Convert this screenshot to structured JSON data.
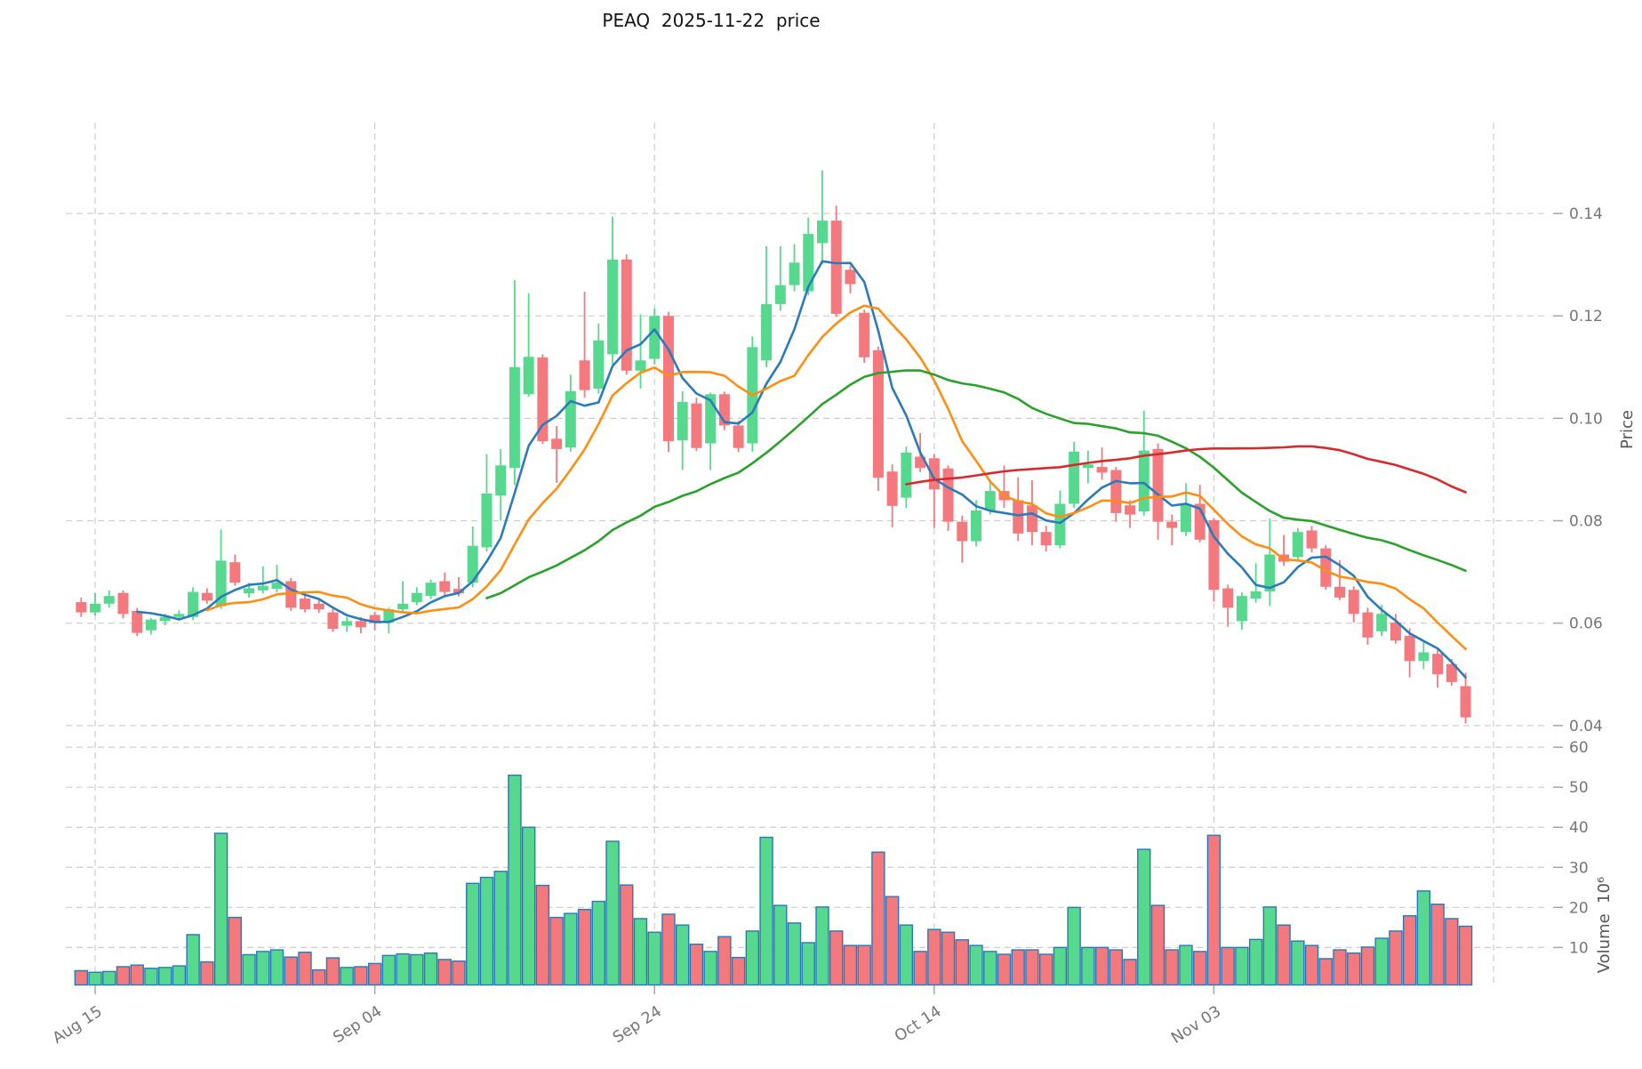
{
  "title": "PEAQ  2025-11-22  price",
  "chart_data": {
    "type": "candlestick",
    "subpanels": [
      "price",
      "volume"
    ],
    "price_axis": {
      "label": "Price",
      "ticks": [
        "0.14",
        "0.12",
        "0.10",
        "0.08",
        "0.06",
        "0.04"
      ],
      "tick_values": [
        0.14,
        0.12,
        0.1,
        0.08,
        0.06,
        0.04
      ],
      "range": [
        0.038,
        0.158
      ]
    },
    "volume_axis": {
      "label": "Volume  10⁶",
      "ticks": [
        "60",
        "50",
        "40",
        "30",
        "20",
        "10"
      ],
      "tick_values": [
        60,
        50,
        40,
        30,
        20,
        10
      ],
      "unit_scale": 1000000,
      "range": [
        0,
        66
      ]
    },
    "x_ticks": [
      {
        "label": "Aug 15",
        "day": 1
      },
      {
        "label": "Sep 04",
        "day": 21
      },
      {
        "label": "Sep 24",
        "day": 41
      },
      {
        "label": "Oct 14",
        "day": 61
      },
      {
        "label": "Nov 03",
        "day": 81
      }
    ],
    "x_gridline_days": [
      1,
      21,
      41,
      61,
      81,
      101
    ],
    "grid": "dashed",
    "moving_averages": [
      {
        "name": "ma-5",
        "window": 5,
        "color": "#2b7bba"
      },
      {
        "name": "ma-10",
        "window": 10,
        "color": "#ff8e13"
      },
      {
        "name": "ma-30",
        "window": 30,
        "color": "#2ca02c"
      },
      {
        "name": "ma-60",
        "window": 60,
        "color": "#d62b2e"
      }
    ],
    "candles": [
      {
        "d": "Aug 14",
        "o": 0.0641,
        "h": 0.065,
        "l": 0.0612,
        "c": 0.0621,
        "v": 4.2
      },
      {
        "d": "Aug 15",
        "o": 0.0621,
        "h": 0.0659,
        "l": 0.0615,
        "c": 0.0638,
        "v": 3.8
      },
      {
        "d": "Aug 16",
        "o": 0.0638,
        "h": 0.0664,
        "l": 0.063,
        "c": 0.0653,
        "v": 4.0
      },
      {
        "d": "Aug 17",
        "o": 0.0659,
        "h": 0.0664,
        "l": 0.0609,
        "c": 0.0618,
        "v": 5.2
      },
      {
        "d": "Aug 18",
        "o": 0.0624,
        "h": 0.063,
        "l": 0.0575,
        "c": 0.0581,
        "v": 5.6
      },
      {
        "d": "Aug 19",
        "o": 0.0586,
        "h": 0.061,
        "l": 0.0578,
        "c": 0.0607,
        "v": 4.8
      },
      {
        "d": "Aug 20",
        "o": 0.0604,
        "h": 0.0618,
        "l": 0.0596,
        "c": 0.0612,
        "v": 5.0
      },
      {
        "d": "Aug 21",
        "o": 0.0612,
        "h": 0.0625,
        "l": 0.0605,
        "c": 0.0618,
        "v": 5.4
      },
      {
        "d": "Aug 22",
        "o": 0.0612,
        "h": 0.067,
        "l": 0.0606,
        "c": 0.0661,
        "v": 13.2
      },
      {
        "d": "Aug 23",
        "o": 0.0659,
        "h": 0.0668,
        "l": 0.0638,
        "c": 0.0644,
        "v": 6.4
      },
      {
        "d": "Aug 24",
        "o": 0.0633,
        "h": 0.0783,
        "l": 0.0628,
        "c": 0.0722,
        "v": 38.5
      },
      {
        "d": "Aug 25",
        "o": 0.0719,
        "h": 0.0734,
        "l": 0.0673,
        "c": 0.0679,
        "v": 17.5
      },
      {
        "d": "Aug 26",
        "o": 0.0658,
        "h": 0.0679,
        "l": 0.065,
        "c": 0.0668,
        "v": 8.2
      },
      {
        "d": "Aug 27",
        "o": 0.0664,
        "h": 0.0711,
        "l": 0.0658,
        "c": 0.0673,
        "v": 9.0
      },
      {
        "d": "Aug 28",
        "o": 0.0667,
        "h": 0.0714,
        "l": 0.066,
        "c": 0.0679,
        "v": 9.4
      },
      {
        "d": "Aug 29",
        "o": 0.0682,
        "h": 0.0688,
        "l": 0.0624,
        "c": 0.063,
        "v": 7.6
      },
      {
        "d": "Aug 30",
        "o": 0.0648,
        "h": 0.0655,
        "l": 0.0621,
        "c": 0.0627,
        "v": 8.8
      },
      {
        "d": "Aug 31",
        "o": 0.0638,
        "h": 0.0645,
        "l": 0.062,
        "c": 0.0627,
        "v": 4.4
      },
      {
        "d": "Sep 01",
        "o": 0.0621,
        "h": 0.0628,
        "l": 0.0583,
        "c": 0.0589,
        "v": 7.4
      },
      {
        "d": "Sep 02",
        "o": 0.0595,
        "h": 0.0612,
        "l": 0.0583,
        "c": 0.0604,
        "v": 5.0
      },
      {
        "d": "Sep 03",
        "o": 0.0604,
        "h": 0.0612,
        "l": 0.058,
        "c": 0.0592,
        "v": 5.2
      },
      {
        "d": "Sep 04",
        "o": 0.0616,
        "h": 0.0622,
        "l": 0.0586,
        "c": 0.06,
        "v": 6.0
      },
      {
        "d": "Sep 05",
        "o": 0.0601,
        "h": 0.063,
        "l": 0.058,
        "c": 0.0627,
        "v": 8.0
      },
      {
        "d": "Sep 06",
        "o": 0.0627,
        "h": 0.0682,
        "l": 0.0622,
        "c": 0.0638,
        "v": 8.4
      },
      {
        "d": "Sep 07",
        "o": 0.0641,
        "h": 0.067,
        "l": 0.0635,
        "c": 0.0659,
        "v": 8.2
      },
      {
        "d": "Sep 08",
        "o": 0.0653,
        "h": 0.0685,
        "l": 0.0647,
        "c": 0.0679,
        "v": 8.6
      },
      {
        "d": "Sep 09",
        "o": 0.0682,
        "h": 0.0699,
        "l": 0.0655,
        "c": 0.0661,
        "v": 7.0
      },
      {
        "d": "Sep 10",
        "o": 0.0667,
        "h": 0.069,
        "l": 0.0652,
        "c": 0.0658,
        "v": 6.6
      },
      {
        "d": "Sep 11",
        "o": 0.0679,
        "h": 0.0789,
        "l": 0.067,
        "c": 0.0751,
        "v": 26.0
      },
      {
        "d": "Sep 12",
        "o": 0.0748,
        "h": 0.093,
        "l": 0.074,
        "c": 0.0853,
        "v": 27.5
      },
      {
        "d": "Sep 13",
        "o": 0.0849,
        "h": 0.094,
        "l": 0.08,
        "c": 0.0908,
        "v": 29.0
      },
      {
        "d": "Sep 14",
        "o": 0.0903,
        "h": 0.127,
        "l": 0.087,
        "c": 0.11,
        "v": 53.0
      },
      {
        "d": "Sep 15",
        "o": 0.1047,
        "h": 0.1244,
        "l": 0.1042,
        "c": 0.112,
        "v": 40.0
      },
      {
        "d": "Sep 16",
        "o": 0.1119,
        "h": 0.1125,
        "l": 0.095,
        "c": 0.0955,
        "v": 25.5
      },
      {
        "d": "Sep 17",
        "o": 0.096,
        "h": 0.0985,
        "l": 0.0874,
        "c": 0.094,
        "v": 17.5
      },
      {
        "d": "Sep 18",
        "o": 0.0943,
        "h": 0.1085,
        "l": 0.0935,
        "c": 0.1053,
        "v": 18.5
      },
      {
        "d": "Sep 19",
        "o": 0.1113,
        "h": 0.1247,
        "l": 0.104,
        "c": 0.1055,
        "v": 19.5
      },
      {
        "d": "Sep 20",
        "o": 0.1058,
        "h": 0.1185,
        "l": 0.1048,
        "c": 0.1152,
        "v": 21.5
      },
      {
        "d": "Sep 21",
        "o": 0.1125,
        "h": 0.1394,
        "l": 0.1105,
        "c": 0.131,
        "v": 36.5
      },
      {
        "d": "Sep 22",
        "o": 0.131,
        "h": 0.132,
        "l": 0.1085,
        "c": 0.1093,
        "v": 25.6
      },
      {
        "d": "Sep 23",
        "o": 0.1093,
        "h": 0.1203,
        "l": 0.1058,
        "c": 0.1113,
        "v": 17.2
      },
      {
        "d": "Sep 24",
        "o": 0.1116,
        "h": 0.1215,
        "l": 0.1105,
        "c": 0.12,
        "v": 13.8
      },
      {
        "d": "Sep 25",
        "o": 0.12,
        "h": 0.1208,
        "l": 0.0934,
        "c": 0.0955,
        "v": 18.3
      },
      {
        "d": "Sep 26",
        "o": 0.0957,
        "h": 0.1053,
        "l": 0.0899,
        "c": 0.1032,
        "v": 15.6
      },
      {
        "d": "Sep 27",
        "o": 0.1029,
        "h": 0.104,
        "l": 0.0936,
        "c": 0.0942,
        "v": 10.8
      },
      {
        "d": "Sep 28",
        "o": 0.0951,
        "h": 0.105,
        "l": 0.0899,
        "c": 0.1047,
        "v": 9.0
      },
      {
        "d": "Sep 29",
        "o": 0.1047,
        "h": 0.1052,
        "l": 0.0977,
        "c": 0.0986,
        "v": 12.7
      },
      {
        "d": "Sep 30",
        "o": 0.0986,
        "h": 0.0995,
        "l": 0.0934,
        "c": 0.0942,
        "v": 7.5
      },
      {
        "d": "Oct 01",
        "o": 0.0951,
        "h": 0.116,
        "l": 0.0935,
        "c": 0.1139,
        "v": 14.1
      },
      {
        "d": "Oct 02",
        "o": 0.1113,
        "h": 0.1336,
        "l": 0.11,
        "c": 0.1223,
        "v": 37.5
      },
      {
        "d": "Oct 03",
        "o": 0.1223,
        "h": 0.1336,
        "l": 0.121,
        "c": 0.126,
        "v": 20.5
      },
      {
        "d": "Oct 04",
        "o": 0.126,
        "h": 0.134,
        "l": 0.1248,
        "c": 0.1304,
        "v": 16.1
      },
      {
        "d": "Oct 05",
        "o": 0.1248,
        "h": 0.1392,
        "l": 0.124,
        "c": 0.136,
        "v": 11.2
      },
      {
        "d": "Oct 06",
        "o": 0.1342,
        "h": 0.1484,
        "l": 0.1301,
        "c": 0.1386,
        "v": 20.1
      },
      {
        "d": "Oct 07",
        "o": 0.1386,
        "h": 0.1415,
        "l": 0.1198,
        "c": 0.1204,
        "v": 14.1
      },
      {
        "d": "Oct 08",
        "o": 0.129,
        "h": 0.1298,
        "l": 0.1244,
        "c": 0.1262,
        "v": 10.5
      },
      {
        "d": "Oct 09",
        "o": 0.1206,
        "h": 0.1212,
        "l": 0.1108,
        "c": 0.1119,
        "v": 10.5
      },
      {
        "d": "Oct 10",
        "o": 0.1133,
        "h": 0.114,
        "l": 0.0858,
        "c": 0.0884,
        "v": 33.8
      },
      {
        "d": "Oct 11",
        "o": 0.0896,
        "h": 0.091,
        "l": 0.0787,
        "c": 0.0829,
        "v": 22.7
      },
      {
        "d": "Oct 12",
        "o": 0.0845,
        "h": 0.0945,
        "l": 0.0825,
        "c": 0.0933,
        "v": 15.6
      },
      {
        "d": "Oct 13",
        "o": 0.0925,
        "h": 0.0971,
        "l": 0.0895,
        "c": 0.0903,
        "v": 9.0
      },
      {
        "d": "Oct 14",
        "o": 0.0922,
        "h": 0.093,
        "l": 0.0786,
        "c": 0.0861,
        "v": 14.5
      },
      {
        "d": "Oct 15",
        "o": 0.0902,
        "h": 0.0908,
        "l": 0.078,
        "c": 0.0798,
        "v": 13.8
      },
      {
        "d": "Oct 16",
        "o": 0.0798,
        "h": 0.081,
        "l": 0.0718,
        "c": 0.076,
        "v": 11.9
      },
      {
        "d": "Oct 17",
        "o": 0.076,
        "h": 0.084,
        "l": 0.075,
        "c": 0.082,
        "v": 10.5
      },
      {
        "d": "Oct 18",
        "o": 0.082,
        "h": 0.088,
        "l": 0.0812,
        "c": 0.0858,
        "v": 9.0
      },
      {
        "d": "Oct 19",
        "o": 0.0858,
        "h": 0.0908,
        "l": 0.0825,
        "c": 0.084,
        "v": 8.3
      },
      {
        "d": "Oct 20",
        "o": 0.084,
        "h": 0.0885,
        "l": 0.076,
        "c": 0.0775,
        "v": 9.4
      },
      {
        "d": "Oct 21",
        "o": 0.083,
        "h": 0.0879,
        "l": 0.0752,
        "c": 0.0778,
        "v": 9.4
      },
      {
        "d": "Oct 22",
        "o": 0.0778,
        "h": 0.079,
        "l": 0.074,
        "c": 0.0752,
        "v": 8.3
      },
      {
        "d": "Oct 23",
        "o": 0.0752,
        "h": 0.0859,
        "l": 0.0746,
        "c": 0.0833,
        "v": 10.0
      },
      {
        "d": "Oct 24",
        "o": 0.0833,
        "h": 0.0954,
        "l": 0.0825,
        "c": 0.0935,
        "v": 20.0
      },
      {
        "d": "Oct 25",
        "o": 0.0903,
        "h": 0.0937,
        "l": 0.0873,
        "c": 0.091,
        "v": 10.0
      },
      {
        "d": "Oct 26",
        "o": 0.0905,
        "h": 0.0943,
        "l": 0.088,
        "c": 0.0894,
        "v": 10.0
      },
      {
        "d": "Oct 27",
        "o": 0.0899,
        "h": 0.0905,
        "l": 0.0798,
        "c": 0.0815,
        "v": 9.4
      },
      {
        "d": "Oct 28",
        "o": 0.083,
        "h": 0.084,
        "l": 0.0786,
        "c": 0.0812,
        "v": 7.0
      },
      {
        "d": "Oct 29",
        "o": 0.0818,
        "h": 0.1015,
        "l": 0.081,
        "c": 0.0937,
        "v": 34.5
      },
      {
        "d": "Oct 30",
        "o": 0.094,
        "h": 0.0951,
        "l": 0.0763,
        "c": 0.0798,
        "v": 20.5
      },
      {
        "d": "Oct 31",
        "o": 0.0798,
        "h": 0.0812,
        "l": 0.0752,
        "c": 0.0786,
        "v": 9.4
      },
      {
        "d": "Nov 01",
        "o": 0.0778,
        "h": 0.0873,
        "l": 0.077,
        "c": 0.0833,
        "v": 10.5
      },
      {
        "d": "Nov 02",
        "o": 0.0833,
        "h": 0.087,
        "l": 0.0758,
        "c": 0.0763,
        "v": 9.0
      },
      {
        "d": "Nov 03",
        "o": 0.0801,
        "h": 0.0805,
        "l": 0.0642,
        "c": 0.0665,
        "v": 38.0
      },
      {
        "d": "Nov 04",
        "o": 0.0668,
        "h": 0.0675,
        "l": 0.0593,
        "c": 0.063,
        "v": 10.0
      },
      {
        "d": "Nov 05",
        "o": 0.0604,
        "h": 0.066,
        "l": 0.0587,
        "c": 0.0653,
        "v": 10.0
      },
      {
        "d": "Nov 06",
        "o": 0.0648,
        "h": 0.0717,
        "l": 0.064,
        "c": 0.0662,
        "v": 12.0
      },
      {
        "d": "Nov 07",
        "o": 0.0662,
        "h": 0.0804,
        "l": 0.0633,
        "c": 0.0734,
        "v": 20.1
      },
      {
        "d": "Nov 08",
        "o": 0.0734,
        "h": 0.0772,
        "l": 0.0712,
        "c": 0.072,
        "v": 15.6
      },
      {
        "d": "Nov 09",
        "o": 0.0729,
        "h": 0.0786,
        "l": 0.072,
        "c": 0.0778,
        "v": 11.6
      },
      {
        "d": "Nov 10",
        "o": 0.0781,
        "h": 0.079,
        "l": 0.0738,
        "c": 0.0746,
        "v": 10.5
      },
      {
        "d": "Nov 11",
        "o": 0.0746,
        "h": 0.0752,
        "l": 0.0665,
        "c": 0.0671,
        "v": 7.2
      },
      {
        "d": "Nov 12",
        "o": 0.0671,
        "h": 0.0723,
        "l": 0.0645,
        "c": 0.065,
        "v": 9.4
      },
      {
        "d": "Nov 13",
        "o": 0.0665,
        "h": 0.0672,
        "l": 0.0601,
        "c": 0.0618,
        "v": 8.6
      },
      {
        "d": "Nov 14",
        "o": 0.0621,
        "h": 0.063,
        "l": 0.0558,
        "c": 0.0572,
        "v": 10.1
      },
      {
        "d": "Nov 15",
        "o": 0.0584,
        "h": 0.0636,
        "l": 0.0575,
        "c": 0.0618,
        "v": 12.3
      },
      {
        "d": "Nov 16",
        "o": 0.0601,
        "h": 0.0618,
        "l": 0.056,
        "c": 0.0566,
        "v": 14.1
      },
      {
        "d": "Nov 17",
        "o": 0.0575,
        "h": 0.059,
        "l": 0.0494,
        "c": 0.0526,
        "v": 17.9
      },
      {
        "d": "Nov 18",
        "o": 0.0526,
        "h": 0.0566,
        "l": 0.051,
        "c": 0.0543,
        "v": 24.1
      },
      {
        "d": "Nov 19",
        "o": 0.054,
        "h": 0.0548,
        "l": 0.0474,
        "c": 0.05,
        "v": 20.8
      },
      {
        "d": "Nov 20",
        "o": 0.052,
        "h": 0.053,
        "l": 0.0478,
        "c": 0.0485,
        "v": 17.2
      },
      {
        "d": "Nov 21",
        "o": 0.0477,
        "h": 0.0503,
        "l": 0.0404,
        "c": 0.0416,
        "v": 15.3
      }
    ]
  },
  "colors": {
    "up": "#56d98e",
    "down": "#f4797f",
    "volume_edge": "#2878b8",
    "grid": "#cdcdcd",
    "tick_mark": "#a6a6a6",
    "tick_text": "#757575",
    "title_text": "#141414"
  }
}
